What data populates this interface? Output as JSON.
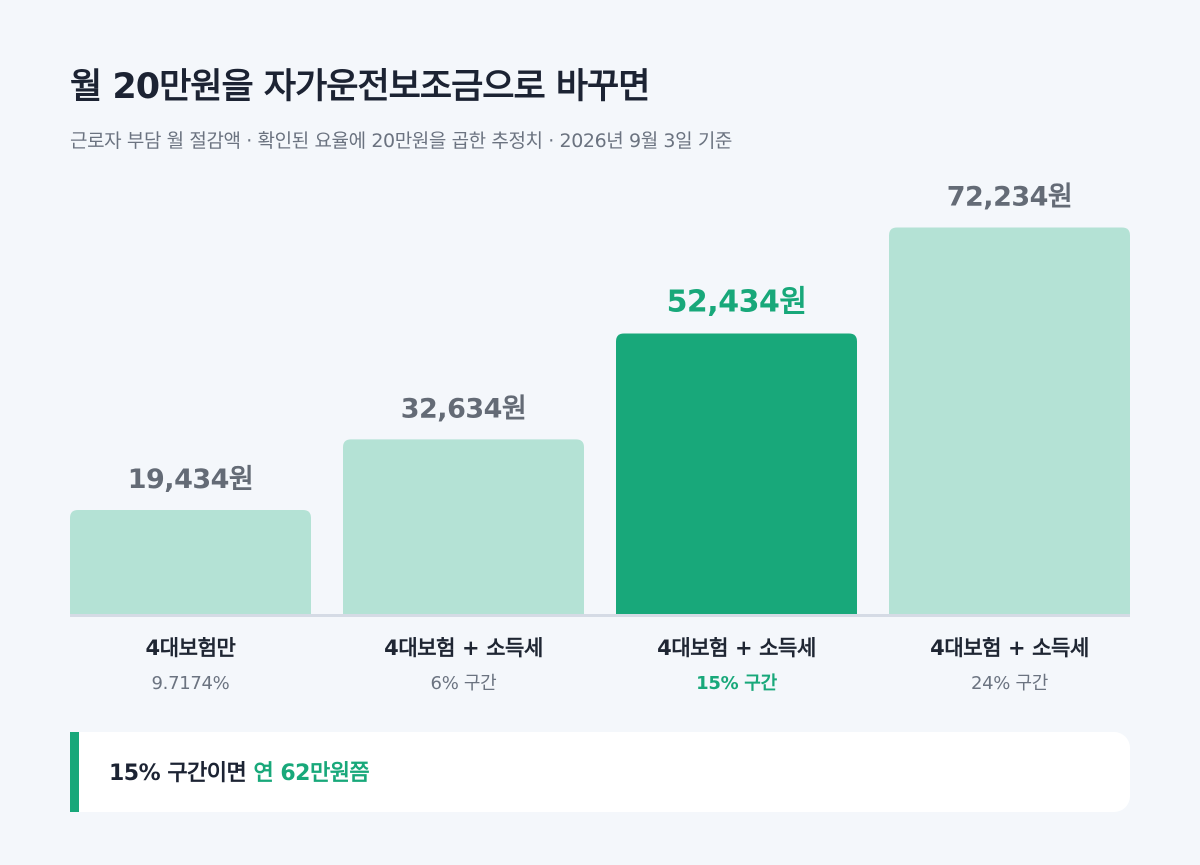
{
  "title": "월 20만원을 자가운전보조금으로 바꾸면",
  "subtitle": "근로자 부담 월 절감액 · 확인된 요율에 20만원을 곱한 추정치 · 2026년 9월 3일 기준",
  "colors": {
    "bar_default": "#b4e2d5",
    "bar_highlight": "#18a87a",
    "value_default": "#646b76",
    "value_highlight": "#18a87a",
    "baseline": "#d5dbe5",
    "category": "#1f2633",
    "sublabel": "#6b7380"
  },
  "chart_data": {
    "type": "bar",
    "categories": [
      "4대보험만",
      "4대보험 + 소득세",
      "4대보험 + 소득세",
      "4대보험 + 소득세"
    ],
    "sublabels": [
      "9.7174%",
      "6% 구간",
      "15% 구간",
      "24% 구간"
    ],
    "values": [
      19434,
      32634,
      52434,
      72234
    ],
    "value_labels": [
      "19,434원",
      "32,634원",
      "52,434원",
      "72,234원"
    ],
    "highlight_index": 2,
    "ylim": [
      0,
      80000
    ],
    "xlabel": "",
    "ylabel": "",
    "grid": false,
    "legend": "none"
  },
  "callout": {
    "prefix": "15% 구간이면 ",
    "highlight": "연 62만원쯤"
  }
}
